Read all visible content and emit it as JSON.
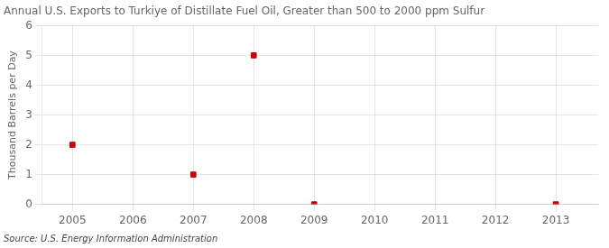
{
  "chart_data": {
    "type": "scatter",
    "title": "Annual U.S. Exports to Turkiye of Distillate Fuel Oil, Greater than 500 to 2000 ppm Sulfur",
    "ylabel": "Thousand Barrels per Day",
    "annotations": [
      "Source: U.S. Energy Information Administration"
    ],
    "x": [
      2005,
      2007,
      2008,
      2009,
      2013
    ],
    "values": [
      2,
      1,
      5,
      0,
      0
    ],
    "color": "#cc0000",
    "marker": "square",
    "xlim": [
      2004.5,
      2013.7
    ],
    "ylim": [
      0,
      6
    ],
    "xticks": [
      2005,
      2006,
      2007,
      2008,
      2009,
      2010,
      2011,
      2012,
      2013
    ],
    "yticks": [
      0,
      1,
      2,
      3,
      4,
      5,
      6
    ],
    "grid": true
  }
}
